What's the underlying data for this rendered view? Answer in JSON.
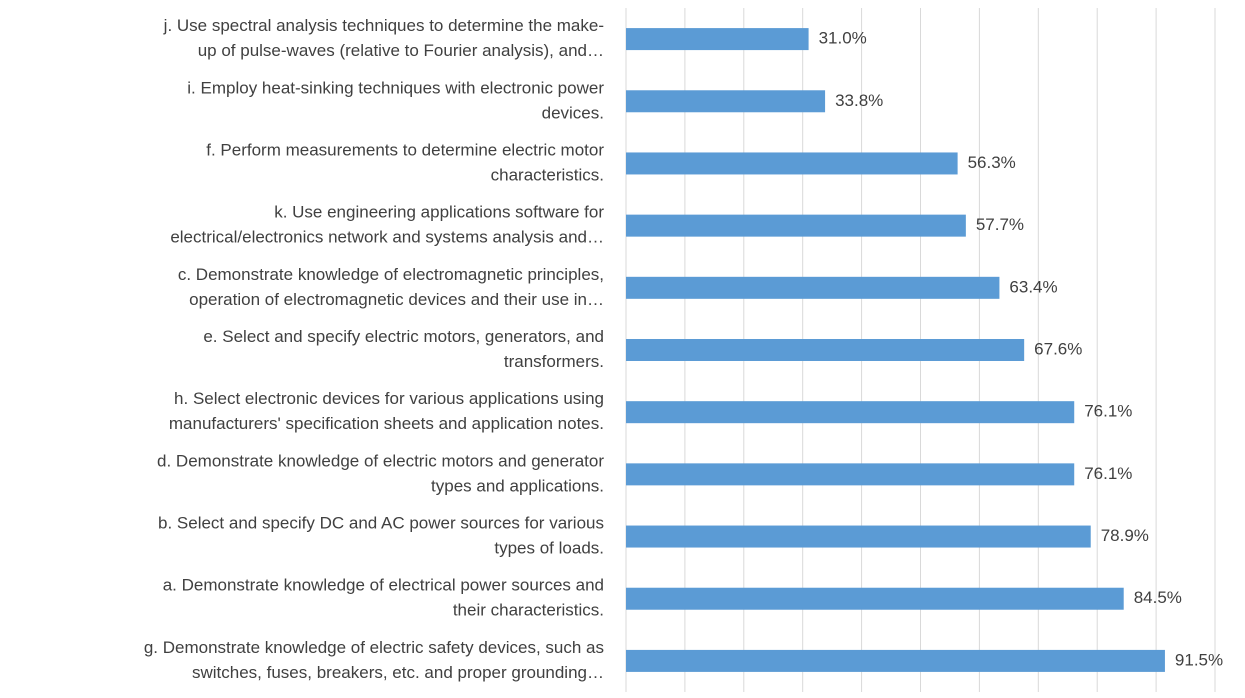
{
  "chart_data": {
    "type": "barh",
    "categories": [
      [
        "j. Use spectral analysis techniques to determine the make-",
        "up of pulse-waves (relative to Fourier analysis), and…"
      ],
      [
        "i. Employ heat-sinking techniques with electronic power",
        "devices."
      ],
      [
        "f.  Perform measurements to determine electric motor",
        "characteristics."
      ],
      [
        "k. Use engineering applications software for",
        "electrical/electronics network and systems analysis and…"
      ],
      [
        "c. Demonstrate knowledge of electromagnetic principles,",
        "operation of electromagnetic devices and their use in…"
      ],
      [
        "e. Select and specify electric motors, generators, and",
        "transformers."
      ],
      [
        "h. Select electronic devices for various applications using",
        "manufacturers' specification sheets and application notes."
      ],
      [
        "d. Demonstrate knowledge of electric motors and generator",
        "types and applications."
      ],
      [
        "b. Select and specify DC and AC power sources for various",
        "types of loads."
      ],
      [
        "a. Demonstrate knowledge of electrical power sources and",
        "their characteristics."
      ],
      [
        "g. Demonstrate knowledge of electric safety devices, such as",
        "switches, fuses, breakers, etc. and proper grounding…"
      ]
    ],
    "values": [
      31.0,
      33.8,
      56.3,
      57.7,
      63.4,
      67.6,
      76.1,
      76.1,
      78.9,
      84.5,
      91.5
    ],
    "value_labels": [
      "31.0%",
      "33.8%",
      "56.3%",
      "57.7%",
      "63.4%",
      "67.6%",
      "76.1%",
      "76.1%",
      "78.9%",
      "84.5%",
      "91.5%"
    ],
    "color": "#5b9bd5",
    "xlim": [
      0,
      100
    ],
    "xticks": [
      0,
      10,
      20,
      30,
      40,
      50,
      60,
      70,
      80,
      90,
      100
    ],
    "grid": true
  }
}
